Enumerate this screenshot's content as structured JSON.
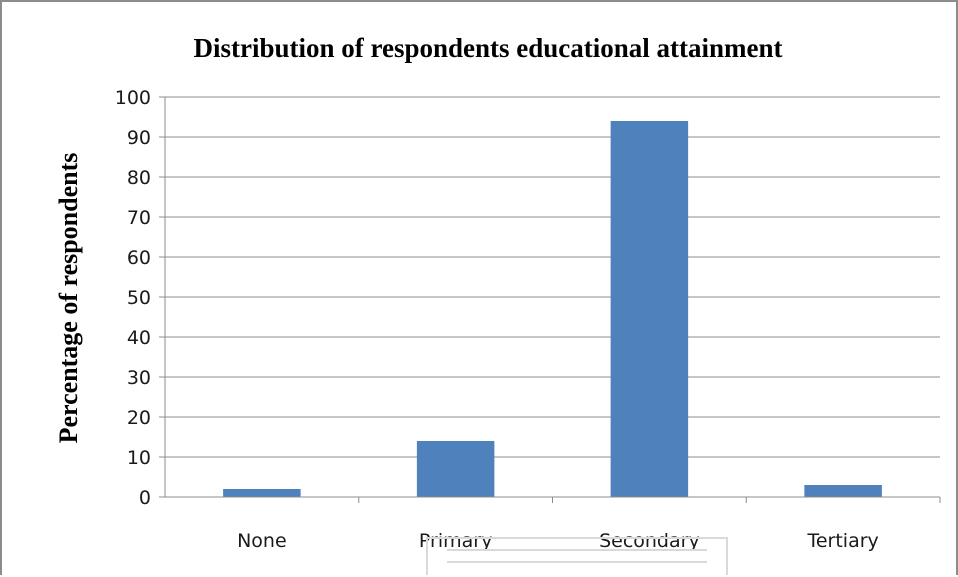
{
  "chart_data": {
    "type": "bar",
    "title": "Distribution of respondents educational attainment",
    "ylabel": "Percentage of respondents",
    "xlabel": "",
    "categories": [
      "None",
      "Primary",
      "Secondary",
      "Tertiary"
    ],
    "values": [
      2,
      14,
      94,
      3
    ],
    "ylim": [
      0,
      100
    ],
    "yticks": [
      "0",
      "10",
      "20",
      "30",
      "40",
      "50",
      "60",
      "70",
      "80",
      "90",
      "100"
    ],
    "grid": true,
    "legend": "none",
    "bar_color": "#4f81bd"
  }
}
